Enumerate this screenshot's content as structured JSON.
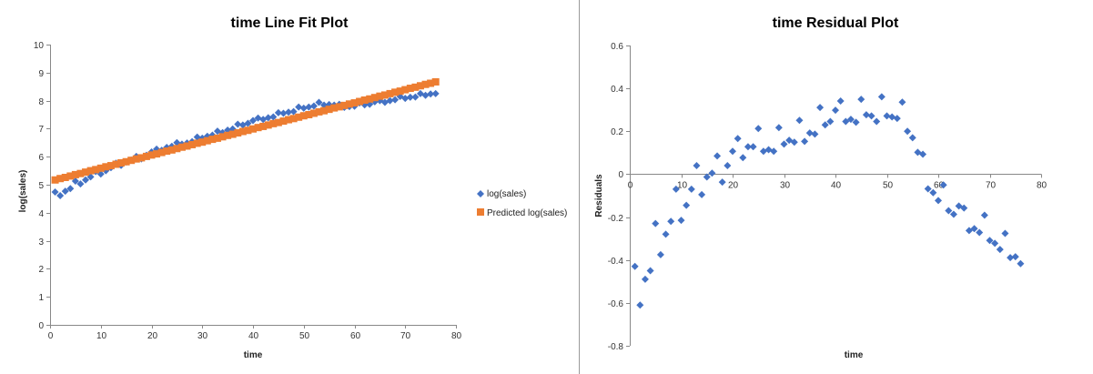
{
  "colors": {
    "actual": "#4472C4",
    "predicted": "#ED7D31",
    "axis": "#888888",
    "divider": "#9a9a9a"
  },
  "chart_data": [
    {
      "type": "scatter",
      "title": "time Line Fit  Plot",
      "xlabel": "time",
      "ylabel": "log(sales)",
      "xlim": [
        0,
        80
      ],
      "ylim": [
        0,
        10
      ],
      "xticks": [
        0,
        10,
        20,
        30,
        40,
        50,
        60,
        70,
        80
      ],
      "yticks": [
        0,
        1,
        2,
        3,
        4,
        5,
        6,
        7,
        8,
        9,
        10
      ],
      "grid": false,
      "legend_placement": "right",
      "x": [
        1,
        2,
        3,
        4,
        5,
        6,
        7,
        8,
        9,
        10,
        11,
        12,
        13,
        14,
        15,
        16,
        17,
        18,
        19,
        20,
        21,
        22,
        23,
        24,
        25,
        26,
        27,
        28,
        29,
        30,
        31,
        32,
        33,
        34,
        35,
        36,
        37,
        38,
        39,
        40,
        41,
        42,
        43,
        44,
        45,
        46,
        47,
        48,
        49,
        50,
        51,
        52,
        53,
        54,
        55,
        56,
        57,
        58,
        59,
        60,
        61,
        62,
        63,
        64,
        65,
        66,
        67,
        68,
        69,
        70,
        71,
        72,
        73,
        74,
        75,
        76
      ],
      "series": [
        {
          "name": "log(sales)",
          "marker": "diamond",
          "color": "#4472C4",
          "values": [
            4.74,
            4.61,
            4.77,
            4.86,
            5.13,
            5.03,
            5.17,
            5.28,
            5.47,
            5.38,
            5.5,
            5.61,
            5.77,
            5.69,
            5.81,
            5.88,
            6.01,
            5.92,
            6.05,
            6.17,
            6.27,
            6.23,
            6.33,
            6.37,
            6.5,
            6.45,
            6.49,
            6.54,
            6.7,
            6.66,
            6.73,
            6.77,
            6.91,
            6.86,
            6.95,
            6.99,
            7.16,
            7.13,
            7.19,
            7.29,
            7.38,
            7.33,
            7.39,
            7.42,
            7.57,
            7.55,
            7.59,
            7.61,
            7.77,
            7.73,
            7.77,
            7.81,
            7.94,
            7.84,
            7.86,
            7.84,
            7.87,
            7.76,
            7.79,
            7.8,
            7.92,
            7.85,
            7.87,
            7.96,
            8.0,
            7.94,
            8.0,
            8.03,
            8.15,
            8.08,
            8.12,
            8.13,
            8.25,
            8.19,
            8.24,
            8.25
          ]
        },
        {
          "name": "Predicted log(sales)",
          "marker": "square",
          "color": "#ED7D31",
          "values": [
            5.17,
            5.22,
            5.26,
            5.31,
            5.36,
            5.4,
            5.45,
            5.5,
            5.54,
            5.59,
            5.64,
            5.68,
            5.73,
            5.78,
            5.82,
            5.87,
            5.92,
            5.96,
            6.01,
            6.06,
            6.1,
            6.15,
            6.2,
            6.24,
            6.29,
            6.34,
            6.38,
            6.43,
            6.48,
            6.52,
            6.57,
            6.62,
            6.66,
            6.71,
            6.76,
            6.8,
            6.85,
            6.9,
            6.94,
            6.99,
            7.04,
            7.08,
            7.13,
            7.18,
            7.22,
            7.27,
            7.32,
            7.36,
            7.41,
            7.46,
            7.5,
            7.55,
            7.6,
            7.64,
            7.69,
            7.74,
            7.78,
            7.83,
            7.88,
            7.92,
            7.97,
            8.02,
            8.06,
            8.11,
            8.16,
            8.2,
            8.25,
            8.3,
            8.34,
            8.39,
            8.44,
            8.48,
            8.53,
            8.58,
            8.62,
            8.67
          ]
        }
      ]
    },
    {
      "type": "scatter",
      "title": "time  Residual Plot",
      "xlabel": "time",
      "ylabel": "Residuals",
      "xlim": [
        0,
        80
      ],
      "ylim": [
        -0.8,
        0.6
      ],
      "xticks": [
        0,
        10,
        20,
        30,
        40,
        50,
        60,
        70,
        80
      ],
      "yticks": [
        -0.8,
        -0.6,
        -0.4,
        -0.2,
        0,
        0.2,
        0.4,
        0.6
      ],
      "grid": false,
      "x": [
        1,
        2,
        3,
        4,
        5,
        6,
        7,
        8,
        9,
        10,
        11,
        12,
        13,
        14,
        15,
        16,
        17,
        18,
        19,
        20,
        21,
        22,
        23,
        24,
        25,
        26,
        27,
        28,
        29,
        30,
        31,
        32,
        33,
        34,
        35,
        36,
        37,
        38,
        39,
        40,
        41,
        42,
        43,
        44,
        45,
        46,
        47,
        48,
        49,
        50,
        51,
        52,
        53,
        54,
        55,
        56,
        57,
        58,
        59,
        60,
        61,
        62,
        63,
        64,
        65,
        66,
        67,
        68,
        69,
        70,
        71,
        72,
        73,
        74,
        75,
        76
      ],
      "series": [
        {
          "marker": "diamond",
          "color": "#4472C4",
          "values": [
            -0.43,
            -0.61,
            -0.49,
            -0.45,
            -0.23,
            -0.375,
            -0.28,
            -0.22,
            -0.07,
            -0.215,
            -0.145,
            -0.07,
            0.04,
            -0.095,
            -0.013,
            0.005,
            0.085,
            -0.037,
            0.04,
            0.107,
            0.166,
            0.077,
            0.128,
            0.128,
            0.213,
            0.107,
            0.114,
            0.107,
            0.217,
            0.14,
            0.158,
            0.149,
            0.251,
            0.153,
            0.192,
            0.187,
            0.311,
            0.23,
            0.246,
            0.298,
            0.341,
            0.246,
            0.256,
            0.242,
            0.349,
            0.277,
            0.272,
            0.246,
            0.361,
            0.272,
            0.267,
            0.26,
            0.336,
            0.2,
            0.17,
            0.102,
            0.093,
            -0.068,
            -0.086,
            -0.123,
            -0.05,
            -0.17,
            -0.187,
            -0.148,
            -0.158,
            -0.263,
            -0.254,
            -0.272,
            -0.191,
            -0.309,
            -0.322,
            -0.351,
            -0.276,
            -0.389,
            -0.385,
            -0.417
          ]
        }
      ]
    }
  ]
}
